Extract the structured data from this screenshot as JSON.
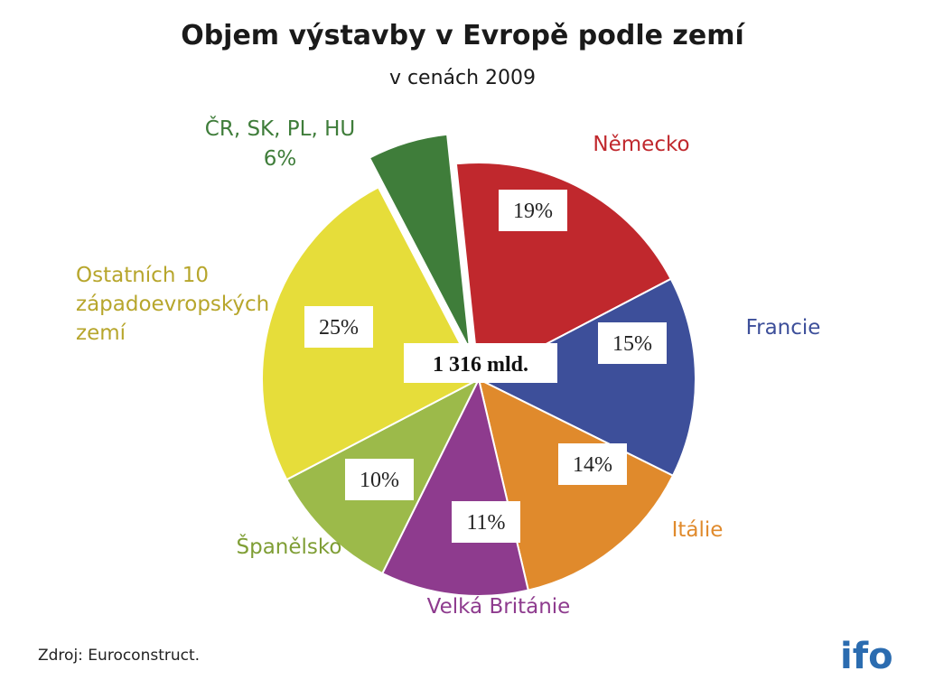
{
  "chart_data": {
    "type": "pie",
    "title": "Objem výstavby v Evropě podle zemí",
    "subtitle": "v cenách 2009",
    "center_label": "1 316 mld.",
    "slices": [
      {
        "label": "Německo",
        "value": 19,
        "value_label": "19%",
        "color": "#c0282d"
      },
      {
        "label": "Francie",
        "value": 15,
        "value_label": "15%",
        "color": "#3d4f9a"
      },
      {
        "label": "Itálie",
        "value": 14,
        "value_label": "14%",
        "color": "#e08a2c"
      },
      {
        "label": "Velká Británie",
        "value": 11,
        "value_label": "11%",
        "color": "#8e3b8e"
      },
      {
        "label": "Španělsko",
        "value": 10,
        "value_label": "10%",
        "color": "#9cba4a"
      },
      {
        "label": "Ostatních 10 západoevropských zemí",
        "label_lines": [
          "Ostatních 10",
          "západoevropských",
          "zemí"
        ],
        "value": 25,
        "value_label": "25%",
        "color": "#e6dd3a"
      },
      {
        "label": "ČR, SK, PL, HU",
        "label_lines": [
          "ČR, SK, PL, HU",
          "6%"
        ],
        "value": 6,
        "value_label": "6%",
        "color": "#3f7d3a",
        "exploded": true
      }
    ]
  },
  "source": "Zdroj: Euroconstruct.",
  "logo": {
    "text": "ifo",
    "color": "#2b6cb0"
  }
}
